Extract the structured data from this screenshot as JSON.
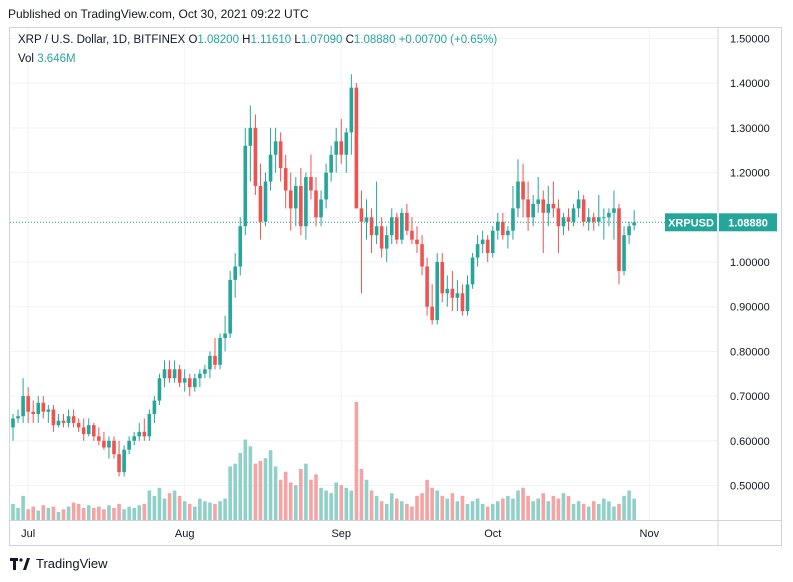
{
  "header": {
    "published": "Published on TradingView.com, Oct 30, 2021 09:22 UTC"
  },
  "legend": {
    "symbol": "XRP / U.S. Dollar, 1D, BITFINEX",
    "o_label": "O",
    "o_value": "1.08200",
    "h_label": "H",
    "h_value": "1.11610",
    "l_label": "L",
    "l_value": "1.07090",
    "c_label": "C",
    "c_value": "1.08880",
    "change": "+0.00700 (+0.65%)",
    "vol_label": "Vol",
    "vol_value": "3.646M"
  },
  "footer": {
    "brand": "TradingView"
  },
  "colors": {
    "up": "#26a69a",
    "down": "#ef5350",
    "up_vol": "#8fd1c9",
    "down_vol": "#f5a3a3",
    "grid": "#f0f3fa",
    "text": "#131722"
  },
  "chart_data": {
    "type": "candlestick",
    "title": "XRP / U.S. Dollar, 1D, BITFINEX",
    "ylim": [
      0.43,
      1.52
    ],
    "y_ticks": [
      "1.50000",
      "1.40000",
      "1.30000",
      "1.20000",
      "1.10000",
      "1.00000",
      "0.90000",
      "0.80000",
      "0.70000",
      "0.60000",
      "0.50000"
    ],
    "x_ticks": [
      {
        "label": "Jul",
        "index": 3
      },
      {
        "label": "Aug",
        "index": 34
      },
      {
        "label": "Sep",
        "index": 65
      },
      {
        "label": "Oct",
        "index": 95
      },
      {
        "label": "Nov",
        "index": 126
      }
    ],
    "last_price": {
      "symbol": "XRPUSD",
      "value": "1.08880",
      "numeric": 1.0888
    },
    "candles": [
      [
        0.63,
        0.66,
        0.6,
        0.65
      ],
      [
        0.65,
        0.67,
        0.64,
        0.655
      ],
      [
        0.655,
        0.74,
        0.64,
        0.7
      ],
      [
        0.7,
        0.72,
        0.64,
        0.665
      ],
      [
        0.665,
        0.69,
        0.64,
        0.66
      ],
      [
        0.66,
        0.7,
        0.64,
        0.685
      ],
      [
        0.685,
        0.7,
        0.65,
        0.665
      ],
      [
        0.665,
        0.68,
        0.64,
        0.67
      ],
      [
        0.67,
        0.68,
        0.62,
        0.635
      ],
      [
        0.635,
        0.66,
        0.63,
        0.645
      ],
      [
        0.645,
        0.66,
        0.63,
        0.64
      ],
      [
        0.64,
        0.67,
        0.63,
        0.655
      ],
      [
        0.655,
        0.67,
        0.63,
        0.64
      ],
      [
        0.64,
        0.65,
        0.62,
        0.63
      ],
      [
        0.63,
        0.65,
        0.6,
        0.615
      ],
      [
        0.615,
        0.65,
        0.61,
        0.635
      ],
      [
        0.635,
        0.64,
        0.6,
        0.61
      ],
      [
        0.61,
        0.63,
        0.59,
        0.6
      ],
      [
        0.6,
        0.62,
        0.58,
        0.585
      ],
      [
        0.585,
        0.61,
        0.56,
        0.6
      ],
      [
        0.6,
        0.61,
        0.56,
        0.57
      ],
      [
        0.57,
        0.6,
        0.52,
        0.53
      ],
      [
        0.53,
        0.59,
        0.52,
        0.58
      ],
      [
        0.58,
        0.61,
        0.57,
        0.6
      ],
      [
        0.6,
        0.62,
        0.59,
        0.61
      ],
      [
        0.61,
        0.64,
        0.6,
        0.62
      ],
      [
        0.62,
        0.65,
        0.6,
        0.61
      ],
      [
        0.61,
        0.67,
        0.6,
        0.66
      ],
      [
        0.66,
        0.7,
        0.64,
        0.69
      ],
      [
        0.69,
        0.75,
        0.68,
        0.74
      ],
      [
        0.74,
        0.78,
        0.72,
        0.76
      ],
      [
        0.76,
        0.78,
        0.73,
        0.74
      ],
      [
        0.74,
        0.78,
        0.73,
        0.76
      ],
      [
        0.76,
        0.77,
        0.72,
        0.73
      ],
      [
        0.73,
        0.76,
        0.71,
        0.74
      ],
      [
        0.74,
        0.75,
        0.7,
        0.72
      ],
      [
        0.72,
        0.75,
        0.71,
        0.74
      ],
      [
        0.74,
        0.76,
        0.72,
        0.75
      ],
      [
        0.75,
        0.77,
        0.74,
        0.76
      ],
      [
        0.76,
        0.8,
        0.74,
        0.79
      ],
      [
        0.79,
        0.83,
        0.76,
        0.77
      ],
      [
        0.77,
        0.84,
        0.76,
        0.83
      ],
      [
        0.83,
        0.88,
        0.8,
        0.84
      ],
      [
        0.84,
        0.98,
        0.83,
        0.96
      ],
      [
        0.96,
        1.02,
        0.92,
        0.99
      ],
      [
        0.99,
        1.1,
        0.97,
        1.08
      ],
      [
        1.08,
        1.3,
        1.06,
        1.26
      ],
      [
        1.26,
        1.35,
        1.18,
        1.3
      ],
      [
        1.3,
        1.33,
        1.15,
        1.17
      ],
      [
        1.17,
        1.22,
        1.05,
        1.09
      ],
      [
        1.09,
        1.2,
        1.08,
        1.18
      ],
      [
        1.18,
        1.3,
        1.16,
        1.24
      ],
      [
        1.24,
        1.3,
        1.2,
        1.27
      ],
      [
        1.27,
        1.29,
        1.18,
        1.21
      ],
      [
        1.21,
        1.24,
        1.12,
        1.16
      ],
      [
        1.16,
        1.2,
        1.07,
        1.12
      ],
      [
        1.12,
        1.19,
        1.08,
        1.17
      ],
      [
        1.17,
        1.21,
        1.06,
        1.08
      ],
      [
        1.08,
        1.2,
        1.05,
        1.19
      ],
      [
        1.19,
        1.24,
        1.14,
        1.16
      ],
      [
        1.16,
        1.19,
        1.08,
        1.1
      ],
      [
        1.1,
        1.16,
        1.08,
        1.14
      ],
      [
        1.14,
        1.22,
        1.12,
        1.2
      ],
      [
        1.2,
        1.26,
        1.18,
        1.24
      ],
      [
        1.24,
        1.3,
        1.2,
        1.27
      ],
      [
        1.27,
        1.32,
        1.22,
        1.24
      ],
      [
        1.24,
        1.3,
        1.2,
        1.29
      ],
      [
        1.29,
        1.42,
        1.24,
        1.39
      ],
      [
        1.39,
        1.4,
        1.12,
        1.12
      ],
      [
        1.12,
        1.16,
        0.93,
        1.09
      ],
      [
        1.09,
        1.14,
        1.05,
        1.1
      ],
      [
        1.1,
        1.12,
        1.02,
        1.06
      ],
      [
        1.06,
        1.18,
        1.04,
        1.08
      ],
      [
        1.08,
        1.1,
        1.01,
        1.03
      ],
      [
        1.03,
        1.08,
        1.0,
        1.06
      ],
      [
        1.06,
        1.12,
        1.04,
        1.1
      ],
      [
        1.1,
        1.11,
        1.04,
        1.05
      ],
      [
        1.05,
        1.12,
        1.04,
        1.11
      ],
      [
        1.11,
        1.13,
        1.06,
        1.07
      ],
      [
        1.07,
        1.1,
        1.04,
        1.05
      ],
      [
        1.05,
        1.08,
        1.02,
        1.04
      ],
      [
        1.04,
        1.06,
        0.97,
        0.99
      ],
      [
        0.99,
        1.01,
        0.88,
        0.9
      ],
      [
        0.9,
        0.95,
        0.86,
        0.87
      ],
      [
        0.87,
        1.02,
        0.86,
        1.0
      ],
      [
        1.0,
        1.02,
        0.91,
        0.93
      ],
      [
        0.93,
        0.97,
        0.9,
        0.94
      ],
      [
        0.94,
        0.98,
        0.89,
        0.92
      ],
      [
        0.92,
        0.96,
        0.89,
        0.93
      ],
      [
        0.93,
        0.95,
        0.88,
        0.89
      ],
      [
        0.89,
        0.97,
        0.88,
        0.95
      ],
      [
        0.95,
        1.02,
        0.94,
        1.01
      ],
      [
        1.01,
        1.06,
        0.99,
        1.04
      ],
      [
        1.04,
        1.07,
        1.02,
        1.05
      ],
      [
        1.05,
        1.06,
        1.0,
        1.02
      ],
      [
        1.02,
        1.08,
        1.01,
        1.07
      ],
      [
        1.07,
        1.11,
        1.05,
        1.09
      ],
      [
        1.09,
        1.11,
        1.05,
        1.06
      ],
      [
        1.06,
        1.08,
        1.03,
        1.07
      ],
      [
        1.07,
        1.17,
        1.05,
        1.12
      ],
      [
        1.12,
        1.23,
        1.1,
        1.18
      ],
      [
        1.18,
        1.22,
        1.1,
        1.14
      ],
      [
        1.14,
        1.18,
        1.07,
        1.1
      ],
      [
        1.1,
        1.15,
        1.08,
        1.13
      ],
      [
        1.13,
        1.19,
        1.11,
        1.14
      ],
      [
        1.14,
        1.16,
        1.02,
        1.11
      ],
      [
        1.11,
        1.17,
        1.08,
        1.13
      ],
      [
        1.13,
        1.18,
        1.1,
        1.12
      ],
      [
        1.12,
        1.14,
        1.02,
        1.08
      ],
      [
        1.08,
        1.11,
        1.06,
        1.1
      ],
      [
        1.1,
        1.12,
        1.07,
        1.09
      ],
      [
        1.09,
        1.13,
        1.08,
        1.12
      ],
      [
        1.12,
        1.16,
        1.1,
        1.14
      ],
      [
        1.14,
        1.15,
        1.08,
        1.09
      ],
      [
        1.09,
        1.12,
        1.07,
        1.1
      ],
      [
        1.1,
        1.11,
        1.07,
        1.09
      ],
      [
        1.09,
        1.15,
        1.08,
        1.1
      ],
      [
        1.1,
        1.12,
        1.05,
        1.1
      ],
      [
        1.1,
        1.12,
        1.08,
        1.11
      ],
      [
        1.11,
        1.16,
        1.05,
        1.12
      ],
      [
        1.12,
        1.13,
        0.95,
        0.98
      ],
      [
        0.98,
        1.08,
        0.97,
        1.06
      ],
      [
        1.06,
        1.09,
        1.04,
        1.08
      ],
      [
        1.082,
        1.1161,
        1.0709,
        1.0888
      ]
    ],
    "volume": [
      12,
      9,
      18,
      8,
      10,
      7,
      11,
      9,
      10,
      6,
      8,
      10,
      13,
      12,
      9,
      11,
      9,
      10,
      8,
      11,
      9,
      12,
      8,
      10,
      9,
      11,
      12,
      22,
      18,
      24,
      16,
      20,
      22,
      18,
      14,
      12,
      10,
      16,
      14,
      13,
      12,
      14,
      16,
      40,
      42,
      50,
      60,
      55,
      42,
      44,
      46,
      52,
      40,
      30,
      36,
      28,
      26,
      38,
      42,
      30,
      34,
      24,
      22,
      20,
      28,
      26,
      24,
      22,
      88,
      38,
      30,
      22,
      18,
      14,
      12,
      20,
      16,
      14,
      12,
      10,
      18,
      20,
      30,
      24,
      22,
      18,
      16,
      20,
      14,
      18,
      12,
      14,
      16,
      12,
      10,
      12,
      14,
      16,
      18,
      16,
      22,
      24,
      18,
      14,
      16,
      20,
      14,
      18,
      16,
      20,
      18,
      12,
      14,
      12,
      10,
      14,
      12,
      16,
      14,
      10,
      12,
      18,
      22,
      16,
      14
    ]
  }
}
